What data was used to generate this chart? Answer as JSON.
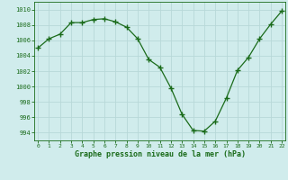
{
  "x": [
    0,
    1,
    2,
    3,
    4,
    5,
    6,
    7,
    8,
    9,
    10,
    11,
    12,
    13,
    14,
    15,
    16,
    17,
    18,
    19,
    20,
    21,
    22
  ],
  "y": [
    1005.0,
    1006.2,
    1006.8,
    1008.3,
    1008.3,
    1008.7,
    1008.8,
    1008.4,
    1007.7,
    1006.2,
    1003.5,
    1002.5,
    999.8,
    996.4,
    994.3,
    994.2,
    995.5,
    998.5,
    1002.1,
    1003.8,
    1006.2,
    1008.1,
    1009.8
  ],
  "line_color": "#1a6b1a",
  "marker_color": "#1a6b1a",
  "bg_color": "#d0ecec",
  "grid_color": "#b8d8d8",
  "xlabel": "Graphe pression niveau de la mer (hPa)",
  "xlabel_color": "#1a6b1a",
  "tick_color": "#1a6b1a",
  "ylim": [
    993,
    1011
  ],
  "yticks": [
    994,
    996,
    998,
    1000,
    1002,
    1004,
    1006,
    1008,
    1010
  ],
  "xticks": [
    0,
    1,
    2,
    3,
    4,
    5,
    6,
    7,
    8,
    9,
    10,
    11,
    12,
    13,
    14,
    15,
    16,
    17,
    18,
    19,
    20,
    21,
    22
  ],
  "xlim": [
    -0.3,
    22.3
  ]
}
